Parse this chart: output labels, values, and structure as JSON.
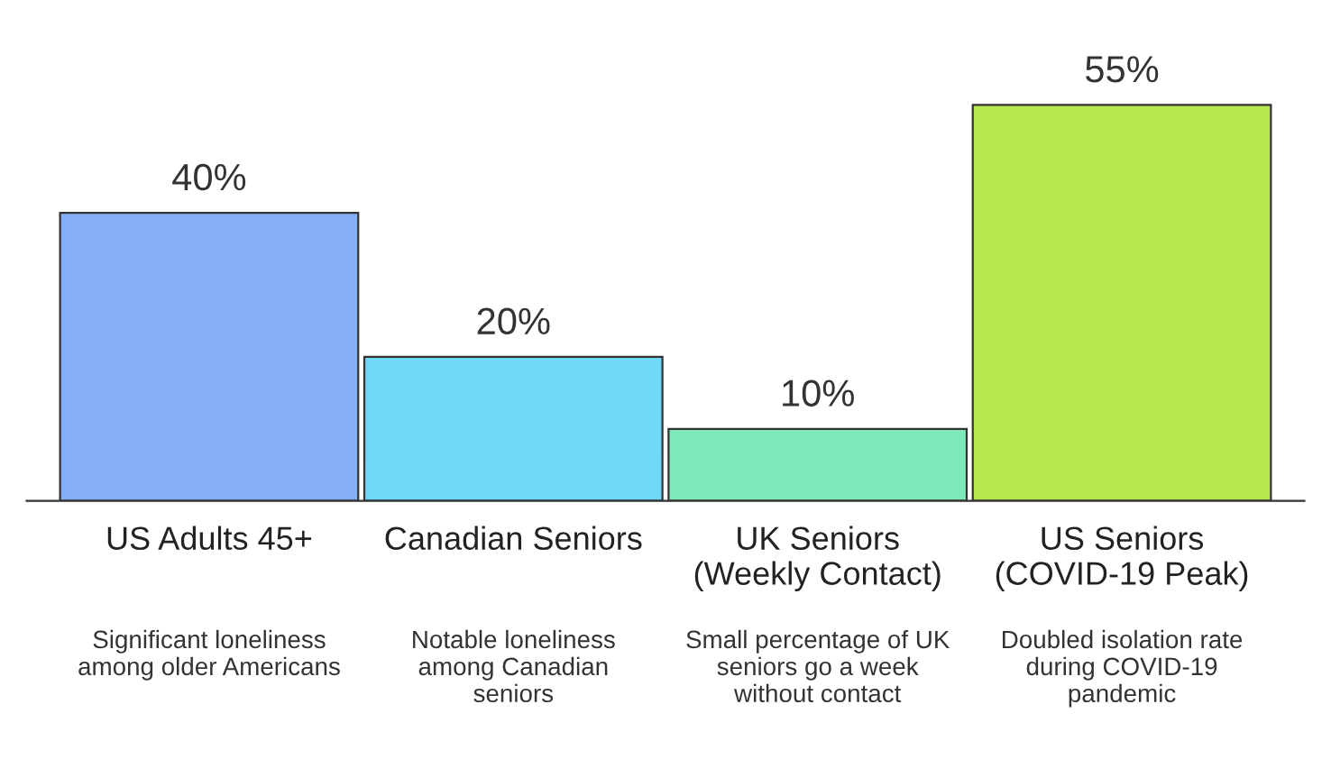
{
  "chart_data": {
    "type": "bar",
    "categories": [
      "US Adults 45+",
      "Canadian Seniors",
      "UK Seniors\n(Weekly Contact)",
      "US Seniors\n(COVID-19 Peak)"
    ],
    "values": [
      40,
      20,
      10,
      55
    ],
    "colors": [
      "#86aef7",
      "#6fd8f8",
      "#7de8b9",
      "#b9e84e"
    ],
    "value_labels": [
      "40%",
      "20%",
      "10%",
      "55%"
    ],
    "annotations": [
      "Significant loneliness\namong older Americans",
      "Notable loneliness\namong Canadian\nseniors",
      "Small percentage of UK\nseniors go a week\nwithout contact",
      "Doubled isolation rate\nduring COVID-19\npandemic"
    ]
  }
}
